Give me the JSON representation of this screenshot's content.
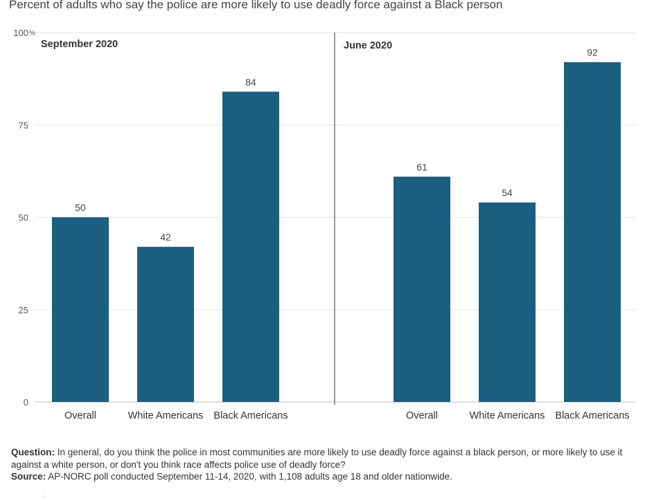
{
  "title": "Percent of adults who say the police are more likely to use deadly force against a Black person",
  "chart_data": {
    "type": "bar",
    "y_axis": {
      "min": 0,
      "max": 100,
      "ticks": [
        0,
        25,
        50,
        75,
        100
      ],
      "tick_labels": [
        "0",
        "25",
        "50",
        "75",
        "100"
      ],
      "unit": "%"
    },
    "grid": true,
    "bar_color": "#1a5e80",
    "panels": [
      {
        "label": "September 2020",
        "categories": [
          "Overall",
          "White Americans",
          "Black Americans"
        ],
        "values": [
          50,
          42,
          84
        ]
      },
      {
        "label": "June 2020",
        "categories": [
          "Overall",
          "White Americans",
          "Black Americans"
        ],
        "values": [
          61,
          54,
          92
        ]
      }
    ]
  },
  "footnote": {
    "question_label": "Question:",
    "question_text": "In general, do you think the police in most communities are more likely to use deadly force against a black person, or more likely to use it against a white person, or don't you think race affects police use of deadly force?",
    "source_label": "Source:",
    "source_text": "AP-NORC poll conducted September 11-14, 2020, with 1,108 adults age 18 and older nationwide."
  }
}
